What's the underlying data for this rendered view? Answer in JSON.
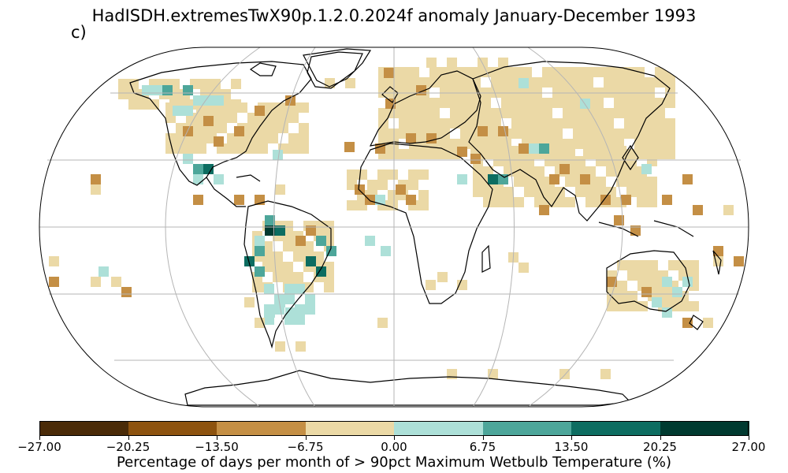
{
  "title": "HadISDH.extremesTwX90p.1.2.0.2024f anomaly January-December 1993",
  "panel_label": "c)",
  "colorbar": {
    "label": "Percentage of days per month of > 90pct Maximum Wetbulb Temperature (%)",
    "ticks": [
      "−27.00",
      "−20.25",
      "−13.50",
      "−6.75",
      "0.00",
      "6.75",
      "13.50",
      "20.25",
      "27.00"
    ],
    "colors": [
      "#4a2b08",
      "#8d530f",
      "#c48f45",
      "#ebd9a6",
      "#ade0d8",
      "#4da69a",
      "#0d6d61",
      "#003a30"
    ],
    "range": [
      -27,
      27
    ]
  },
  "map": {
    "projection": "Robinson",
    "gridlines": true,
    "coastlines": true
  }
}
